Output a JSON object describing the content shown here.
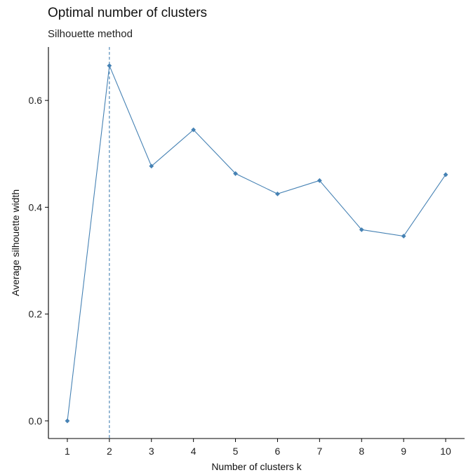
{
  "chart_data": {
    "type": "line",
    "title": "Optimal number of clusters",
    "subtitle": "Silhouette method",
    "xlabel": "Number of clusters k",
    "ylabel": "Average silhouette width",
    "x": [
      1,
      2,
      3,
      4,
      5,
      6,
      7,
      8,
      9,
      10
    ],
    "x_tick_labels": [
      "1",
      "2",
      "3",
      "4",
      "5",
      "6",
      "7",
      "8",
      "9",
      "10"
    ],
    "series": [
      {
        "values": [
          0.0,
          0.665,
          0.477,
          0.545,
          0.463,
          0.425,
          0.45,
          0.358,
          0.346,
          0.461
        ]
      }
    ],
    "optimal_k": 2,
    "xlim": [
      0.55,
      10.45
    ],
    "ylim": [
      -0.033,
      0.7
    ],
    "y_ticks": [
      0.0,
      0.2,
      0.4,
      0.6
    ],
    "y_tick_labels": [
      "0.0",
      "0.2",
      "0.4",
      "0.6"
    ],
    "grid": false,
    "colors": {
      "line": "#4682B4",
      "axis": "#000000",
      "text": "#111111"
    }
  }
}
